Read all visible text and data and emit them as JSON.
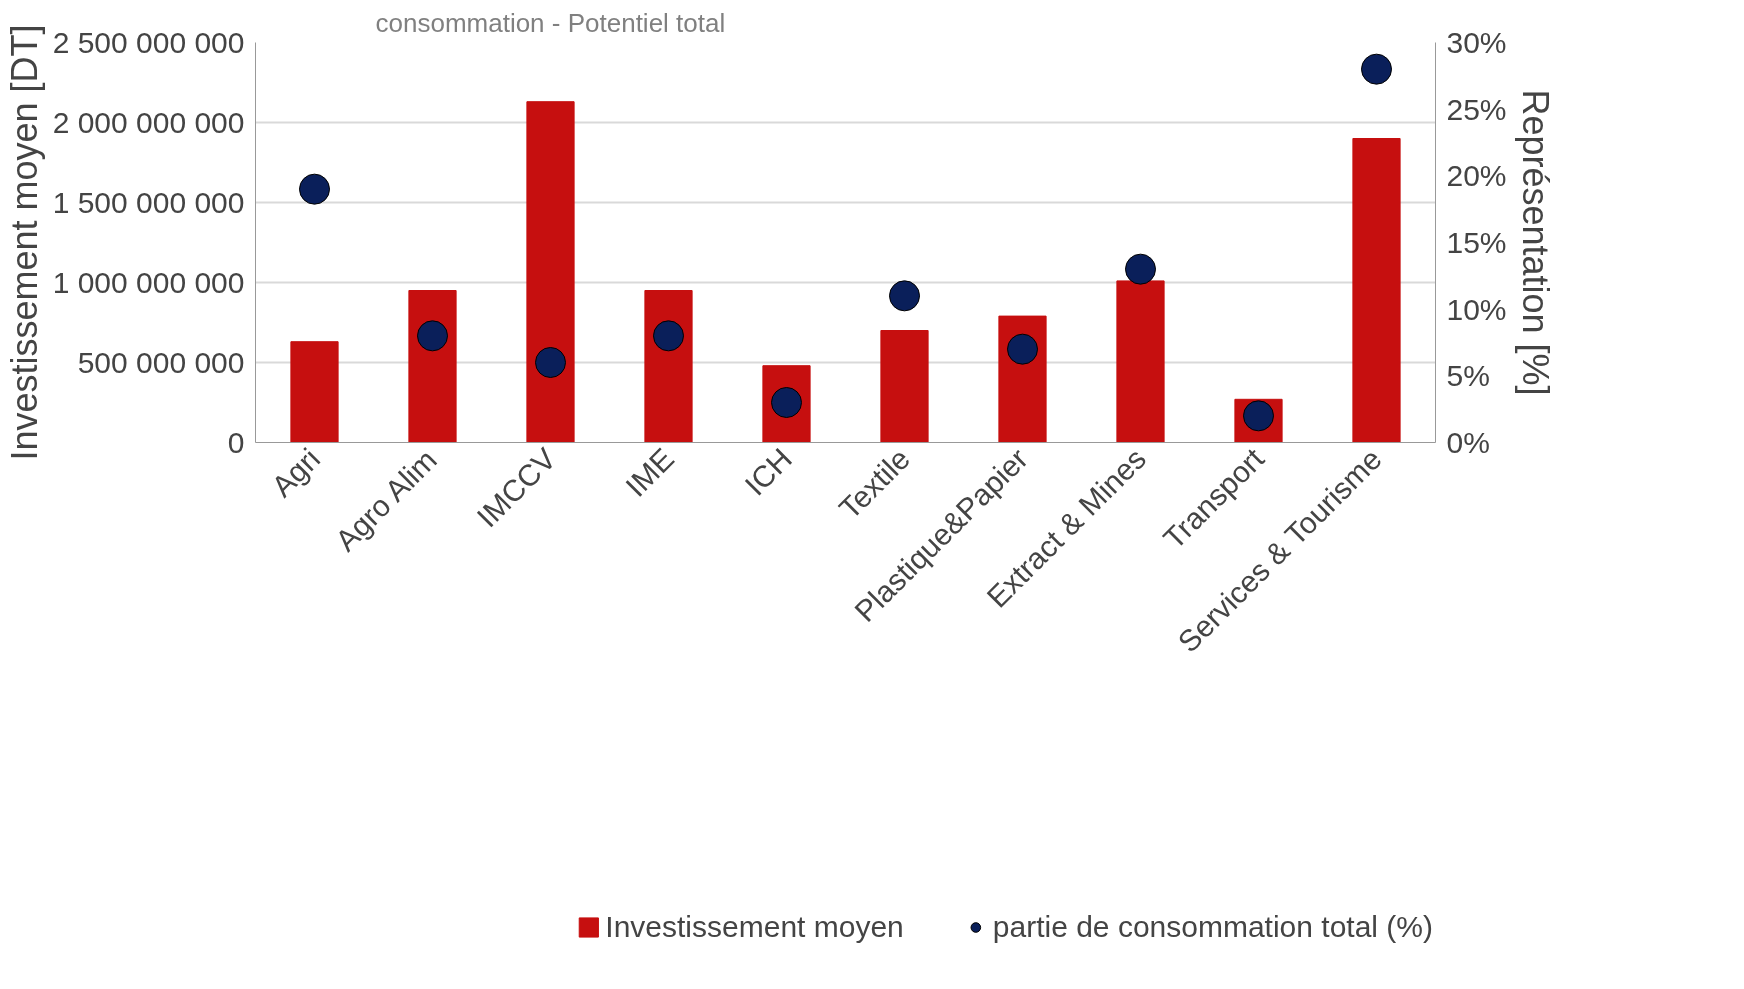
{
  "chart_data": {
    "type": "bar",
    "annotations": [
      "consommation - Potentiel total"
    ],
    "ylabel": "Investissement moyen [DT]",
    "y2label": "Représentation [%]",
    "categories": [
      "Agri",
      "Agro Alim",
      "IMCCV",
      "IME",
      "ICH",
      "Textile",
      "Plastique&Papier",
      "Extract & Mines",
      "Transport",
      "Services & Tourisme"
    ],
    "series": [
      {
        "name": "Investissement moyen",
        "color": "#c60f0f",
        "values": [
          630000000,
          950000000,
          2130000000,
          950000000,
          480000000,
          700000000,
          790000000,
          1010000000,
          270000000,
          1900000000
        ]
      },
      {
        "name": "partie de consommation total (%)",
        "type": "scatter",
        "axis": "y2",
        "color": "#0a1f5a",
        "values": [
          19,
          8,
          6,
          8,
          3,
          11,
          7,
          13,
          2,
          28
        ]
      }
    ],
    "ylim": [
      0,
      2500000000
    ],
    "yticks": [
      {
        "value": 0,
        "label": "0"
      },
      {
        "value": 500000000,
        "label": "500 000 000"
      },
      {
        "value": 1000000000,
        "label": "1 000 000 000"
      },
      {
        "value": 1500000000,
        "label": "1 500 000 000"
      },
      {
        "value": 2000000000,
        "label": "2 000 000 000"
      },
      {
        "value": 2500000000,
        "label": "2 500 000 000"
      }
    ],
    "y2lim": [
      0,
      30
    ],
    "y2ticks": [
      {
        "value": 0,
        "label": "0%"
      },
      {
        "value": 5,
        "label": "5%"
      },
      {
        "value": 10,
        "label": "10%"
      },
      {
        "value": 15,
        "label": "15%"
      },
      {
        "value": 20,
        "label": "20%"
      },
      {
        "value": 25,
        "label": "25%"
      },
      {
        "value": 30,
        "label": "30%"
      }
    ],
    "grid": "y",
    "legend": "bottom",
    "marker": "circle"
  }
}
